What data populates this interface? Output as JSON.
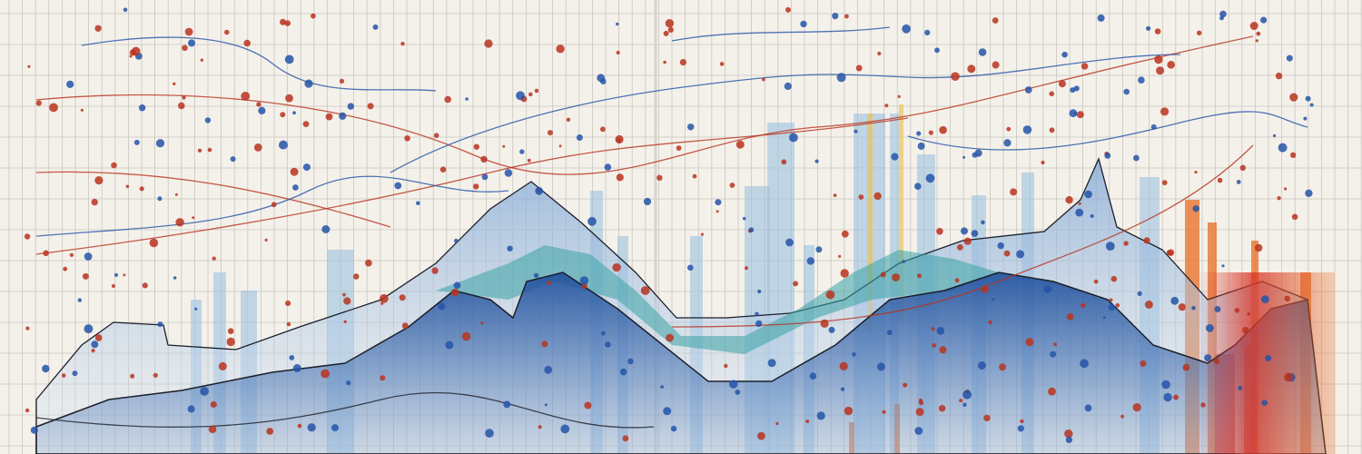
{
  "palette": {
    "paper": "#f4f1ea",
    "grid": "#c9c6c0",
    "deep_blue": "#1f4f9c",
    "mid_blue": "#4f7fc0",
    "light_blue": "#9cc3e0",
    "teal": "#3aa3a6",
    "red_dot": "#b8321f",
    "blue_dot": "#2453a8",
    "orange": "#e8742f",
    "red": "#d9382a",
    "yellow": "#e9c35a",
    "ink": "#1c1f2a"
  }
}
